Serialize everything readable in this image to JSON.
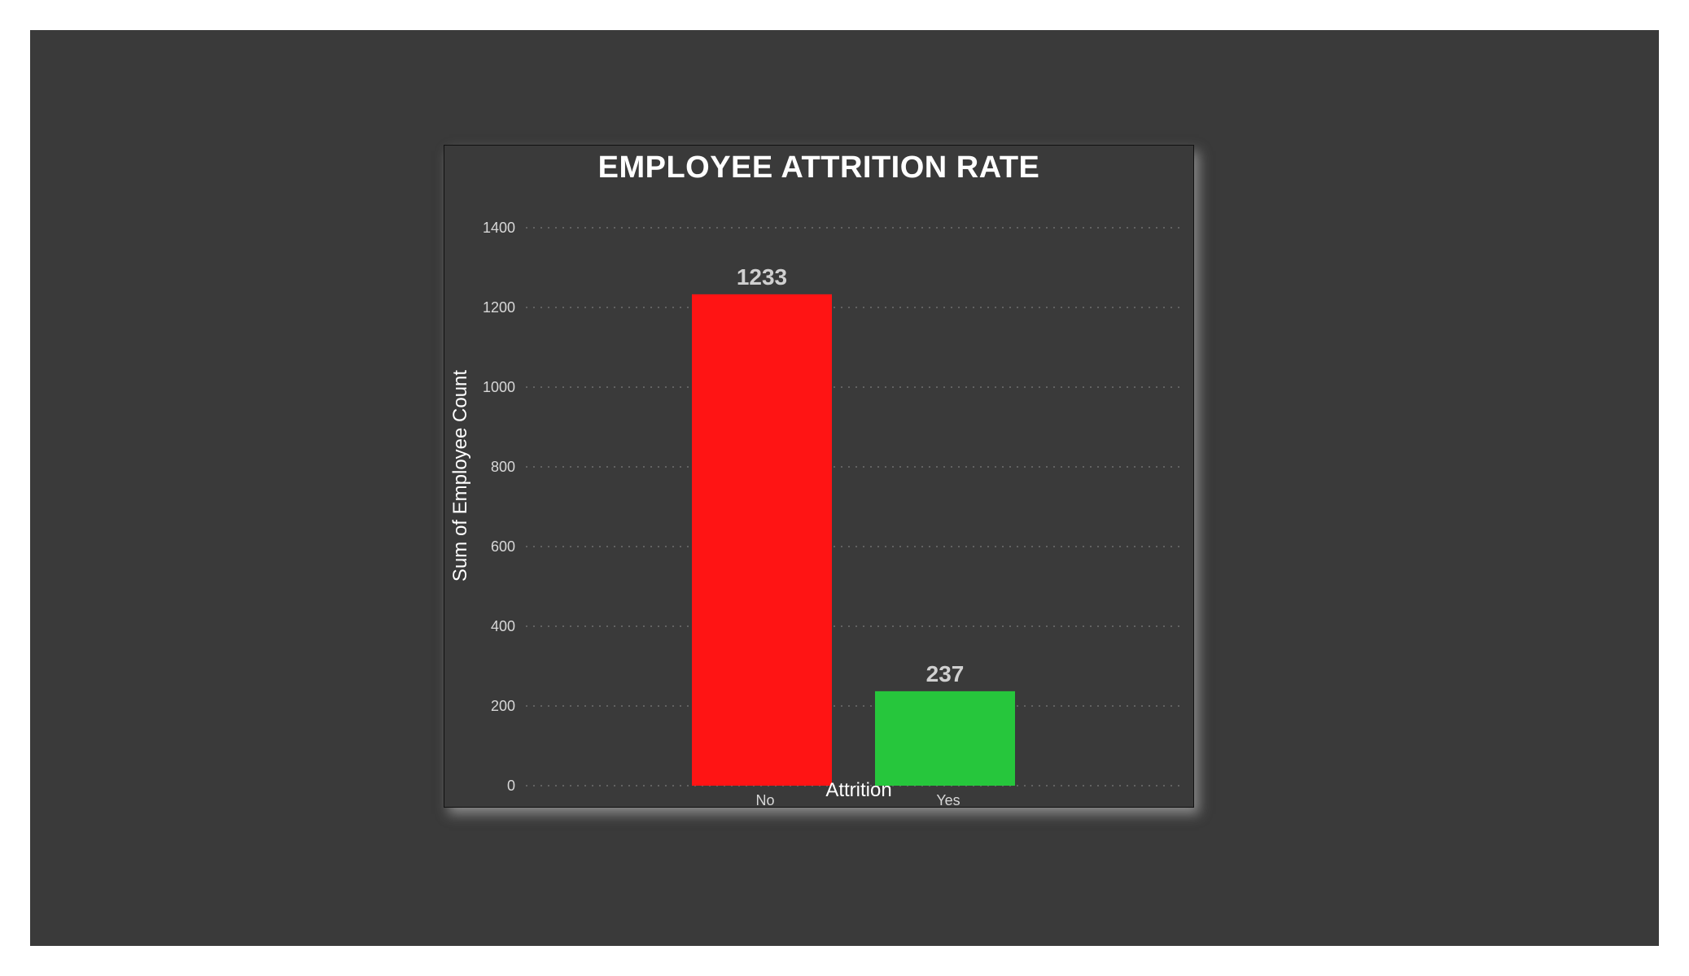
{
  "chart_data": {
    "type": "bar",
    "title": "EMPLOYEE ATTRITION RATE",
    "xlabel": "Attrition",
    "ylabel": "Sum of Employee Count",
    "categories": [
      "No",
      "Yes"
    ],
    "values": [
      1233,
      237
    ],
    "data_labels": [
      "1233",
      "237"
    ],
    "colors": [
      "#ff1414",
      "#26c63c"
    ],
    "ylim": [
      0,
      1400
    ],
    "yticks": [
      0,
      200,
      400,
      600,
      800,
      1000,
      1200,
      1400
    ],
    "grid": true
  }
}
